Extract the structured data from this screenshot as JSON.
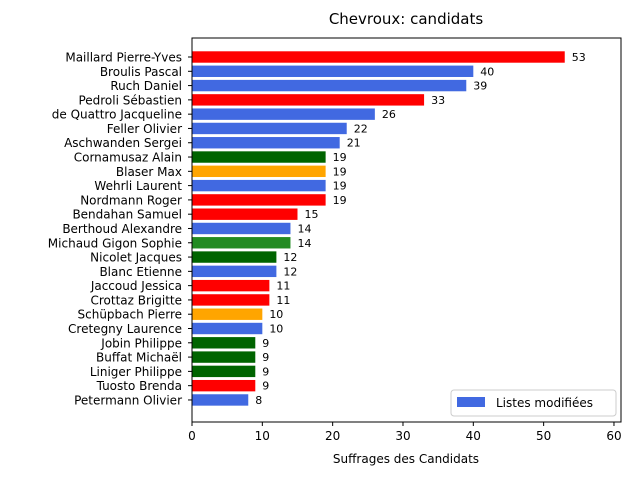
{
  "chart_data": {
    "type": "bar",
    "orientation": "horizontal",
    "title": "Chevroux: candidats",
    "xlabel": "Suffrages des Candidats",
    "ylabel": "",
    "xlim": [
      0,
      61
    ],
    "xticks": [
      0,
      10,
      20,
      30,
      40,
      50,
      60
    ],
    "grid": false,
    "legend": {
      "position": "lower-right",
      "entries": [
        {
          "label": "Listes modifiées",
          "color": "#4169e1"
        }
      ]
    },
    "categories": [
      "Maillard Pierre-Yves",
      "Broulis Pascal",
      "Ruch Daniel",
      "Pedroli Sébastien",
      "de Quattro Jacqueline",
      "Feller Olivier",
      "Aschwanden Sergei",
      "Cornamusaz Alain",
      "Blaser Max",
      "Wehrli Laurent",
      "Nordmann Roger",
      "Bendahan Samuel",
      "Berthoud Alexandre",
      "Michaud Gigon Sophie",
      "Nicolet Jacques",
      "Blanc Etienne",
      "Jaccoud Jessica",
      "Crottaz Brigitte",
      "Schüpbach Pierre",
      "Cretegny Laurence",
      "Jobin Philippe",
      "Buffat Michaël",
      "Liniger Philippe",
      "Tuosto Brenda",
      "Petermann Olivier"
    ],
    "values": [
      53,
      40,
      39,
      33,
      26,
      22,
      21,
      19,
      19,
      19,
      19,
      15,
      14,
      14,
      12,
      12,
      11,
      11,
      10,
      10,
      9,
      9,
      9,
      9,
      8
    ],
    "colors": [
      "#ff0000",
      "#4169e1",
      "#4169e1",
      "#ff0000",
      "#4169e1",
      "#4169e1",
      "#4169e1",
      "#006400",
      "#ffa500",
      "#4169e1",
      "#ff0000",
      "#ff0000",
      "#4169e1",
      "#228b22",
      "#006400",
      "#4169e1",
      "#ff0000",
      "#ff0000",
      "#ffa500",
      "#4169e1",
      "#006400",
      "#006400",
      "#006400",
      "#ff0000",
      "#4169e1"
    ]
  }
}
